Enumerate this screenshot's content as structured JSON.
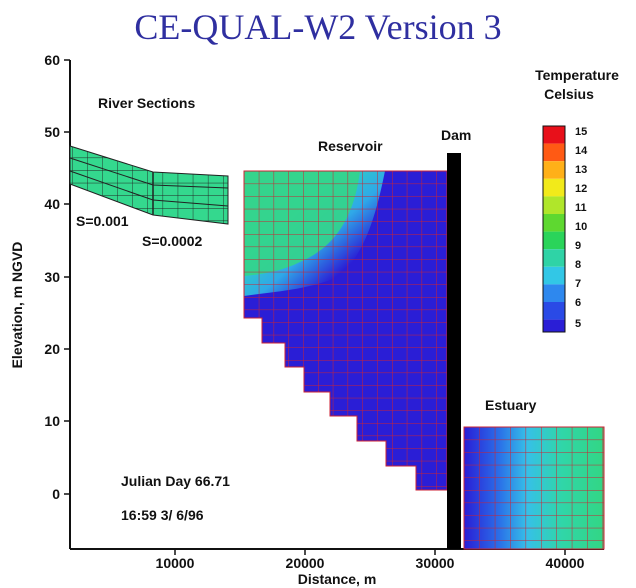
{
  "title": "CE-QUAL-W2 Version 3",
  "axes": {
    "xlabel": "Distance, m",
    "ylabel": "Elevation, m NGVD",
    "xticks": [
      "10000",
      "20000",
      "30000",
      "40000"
    ],
    "yticks": [
      "60",
      "50",
      "40",
      "30",
      "20",
      "10",
      "0"
    ]
  },
  "labels": {
    "river": "River Sections",
    "reservoir": "Reservoir",
    "dam": "Dam",
    "estuary": "Estuary",
    "slope1": "S=0.001",
    "slope2": "S=0.0002",
    "julian": "Julian Day  66.71",
    "time": "16:59   3/ 6/96"
  },
  "legend": {
    "title_line1": "Temperature",
    "title_line2": "Celsius",
    "ticks": [
      "15",
      "14",
      "13",
      "12",
      "11",
      "10",
      "9",
      "8",
      "7",
      "6",
      "5"
    ]
  },
  "colors": {
    "grid_red": "#cc2233",
    "deep_blue": "#2a1ed6",
    "cold_green": "#34d48a",
    "dam_black": "#000000",
    "title_blue": "#2f2fa0"
  }
}
